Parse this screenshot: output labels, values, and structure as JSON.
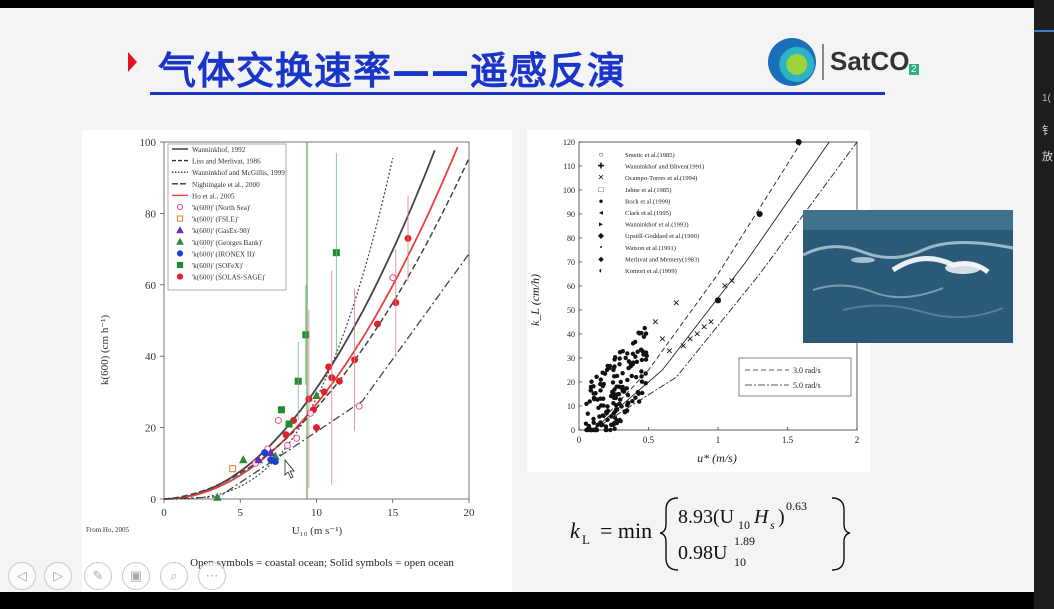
{
  "slide": {
    "title": "气体交换速率——遥感反演",
    "logo_text": "SatCO",
    "logo_sub": "2"
  },
  "left_figure": {
    "legend": [
      {
        "label": "Wanninkhof, 1992",
        "color": "#333333",
        "style": "solid"
      },
      {
        "label": "Liss and Merlivat, 1986",
        "color": "#333333",
        "style": "dash"
      },
      {
        "label": "Wanninkhof and McGillis, 1999",
        "color": "#333333",
        "style": "dot"
      },
      {
        "label": "Nightingale et al., 2000",
        "color": "#333333",
        "style": "longdash"
      },
      {
        "label": "Ho et al., 2005",
        "color": "#e84040",
        "style": "solid"
      },
      {
        "label": "'k(600)' (North Sea)'",
        "color": "#e84d8a",
        "symbol": "open-circle"
      },
      {
        "label": "'k(600)' (FSLE)'",
        "color": "#f07c2a",
        "symbol": "open-square"
      },
      {
        "label": "'k(600)' (GasEx-98)'",
        "color": "#6b2fb0",
        "symbol": "triangle"
      },
      {
        "label": "'k(600)' (Georges Bank)'",
        "color": "#2e8a3a",
        "symbol": "triangle"
      },
      {
        "label": "'k(600)' (IRONEX II)'",
        "color": "#2040d0",
        "symbol": "circle"
      },
      {
        "label": "'k(600)' (SOFeX)'",
        "color": "#1f8a2e",
        "symbol": "square"
      },
      {
        "label": "'k(600)' (SOLAS-SAGE)'",
        "color": "#e0202a",
        "symbol": "circle"
      }
    ],
    "y_ticks": [
      "0",
      "20",
      "40",
      "60",
      "80",
      "100"
    ],
    "x_ticks": [
      "0",
      "5",
      "10",
      "15",
      "20"
    ],
    "y_label": "k(600) (cm h⁻¹)",
    "x_label": "U₁₀ (m s⁻¹)",
    "source": "From Ho, 2005",
    "caption": "Open symbols = coastal ocean; Solid symbols = open ocean"
  },
  "right_figure": {
    "legend": [
      "Smetic et al.(1985)",
      "Wanninkhof and Bliven(1991)",
      "Ocampo-Torres et al.(1994)",
      "Jahne et al.(1985)",
      "Bock et al.(1999)",
      "Clark et al.(1995)",
      "Wanninkhof et al.(1993)",
      "Upstill-Goddard et al.(1990)",
      "Watson et al.(1991)",
      "Merlivat and Memery(1983)",
      "Komori et al.(1999)"
    ],
    "y_ticks": [
      "0",
      "10",
      "20",
      "30",
      "40",
      "50",
      "60",
      "70",
      "80",
      "90",
      "100",
      "110",
      "120"
    ],
    "x_ticks": [
      "0",
      "0.5",
      "1",
      "1.5",
      "2"
    ],
    "y_label": "k_L (cm/h)",
    "x_label": "u* (m/s)",
    "line_legend": [
      "3.0 rad/s",
      "5.0 rad/s"
    ]
  },
  "formula": {
    "lhs": "k",
    "lhs_sub": "L",
    "eq": "= min",
    "row1_coef": "8.93(U",
    "row1_sub": "10",
    "row1_mid": "H",
    "row1_sub2": "s",
    "row1_close": ")",
    "row1_exp": "0.63",
    "row2_coef": "0.98U",
    "row2_sub": "10",
    "row2_exp": "1.89"
  },
  "toolbar": [
    {
      "name": "prev-icon",
      "glyph": "◁"
    },
    {
      "name": "next-icon",
      "glyph": "▷"
    },
    {
      "name": "pen-icon",
      "glyph": "✎"
    },
    {
      "name": "slides-icon",
      "glyph": "▣"
    },
    {
      "name": "zoom-icon",
      "glyph": "⌕"
    },
    {
      "name": "more-icon",
      "glyph": "⋯"
    }
  ],
  "right_panel": {
    "a": "1(",
    "b": "钅",
    "c": "放"
  }
}
